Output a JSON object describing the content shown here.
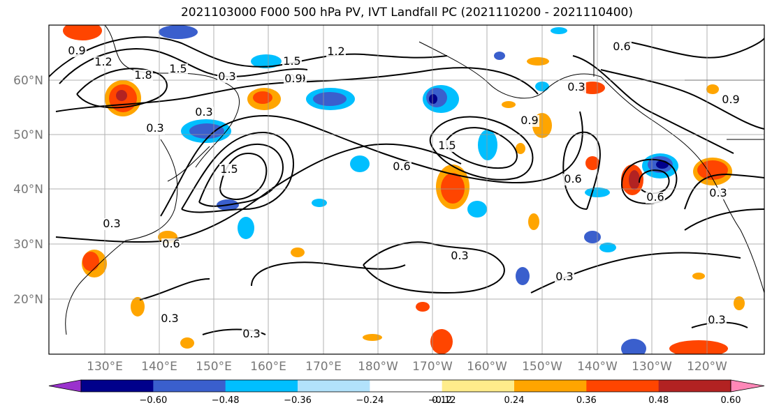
{
  "title": "2021103000 F000 500 hPa PV, IVT Landfall PC (2021110200 - 2021110400)",
  "lat_labels": [
    "60°N",
    "50°N",
    "40°N",
    "30°N",
    "20°N"
  ],
  "lon_labels": [
    "130°E",
    "140°E",
    "150°E",
    "160°E",
    "170°E",
    "180°W",
    "170°W",
    "160°W",
    "150°W",
    "140°W",
    "130°W",
    "120°W"
  ],
  "contour_labels": [
    "0.9",
    "1.2",
    "1.8",
    "1.5",
    "0.3",
    "1.2",
    "1.5",
    "0.9",
    "0.9",
    "0.3",
    "0.3",
    "1.5",
    "0.6",
    "1.5",
    "0.9",
    "0.6",
    "0.3",
    "0.3",
    "0.9",
    "0.6",
    "0.3",
    "0.3",
    "0.6",
    "0.3",
    "0.3",
    "0.3",
    "0.6",
    "0.3"
  ],
  "colorbar": {
    "ticks": [
      "−0.60",
      "−0.48",
      "−0.36",
      "−0.24",
      "−0.12",
      "0.12",
      "0.24",
      "0.36",
      "0.48",
      "0.60"
    ],
    "colors": [
      "#9a32cd",
      "#00008b",
      "#3a5fcd",
      "#00bfff",
      "#b2e2fb",
      "#ffffff",
      "#ffec8b",
      "#ffa500",
      "#ff4500",
      "#b22222",
      "#ff88b8"
    ]
  },
  "layers": {
    "shading": "PC",
    "contours": "500 hPa PV",
    "shade_levels": [
      -0.6,
      -0.48,
      -0.36,
      -0.24,
      -0.12,
      0.12,
      0.24,
      0.36,
      0.48,
      0.6
    ]
  }
}
